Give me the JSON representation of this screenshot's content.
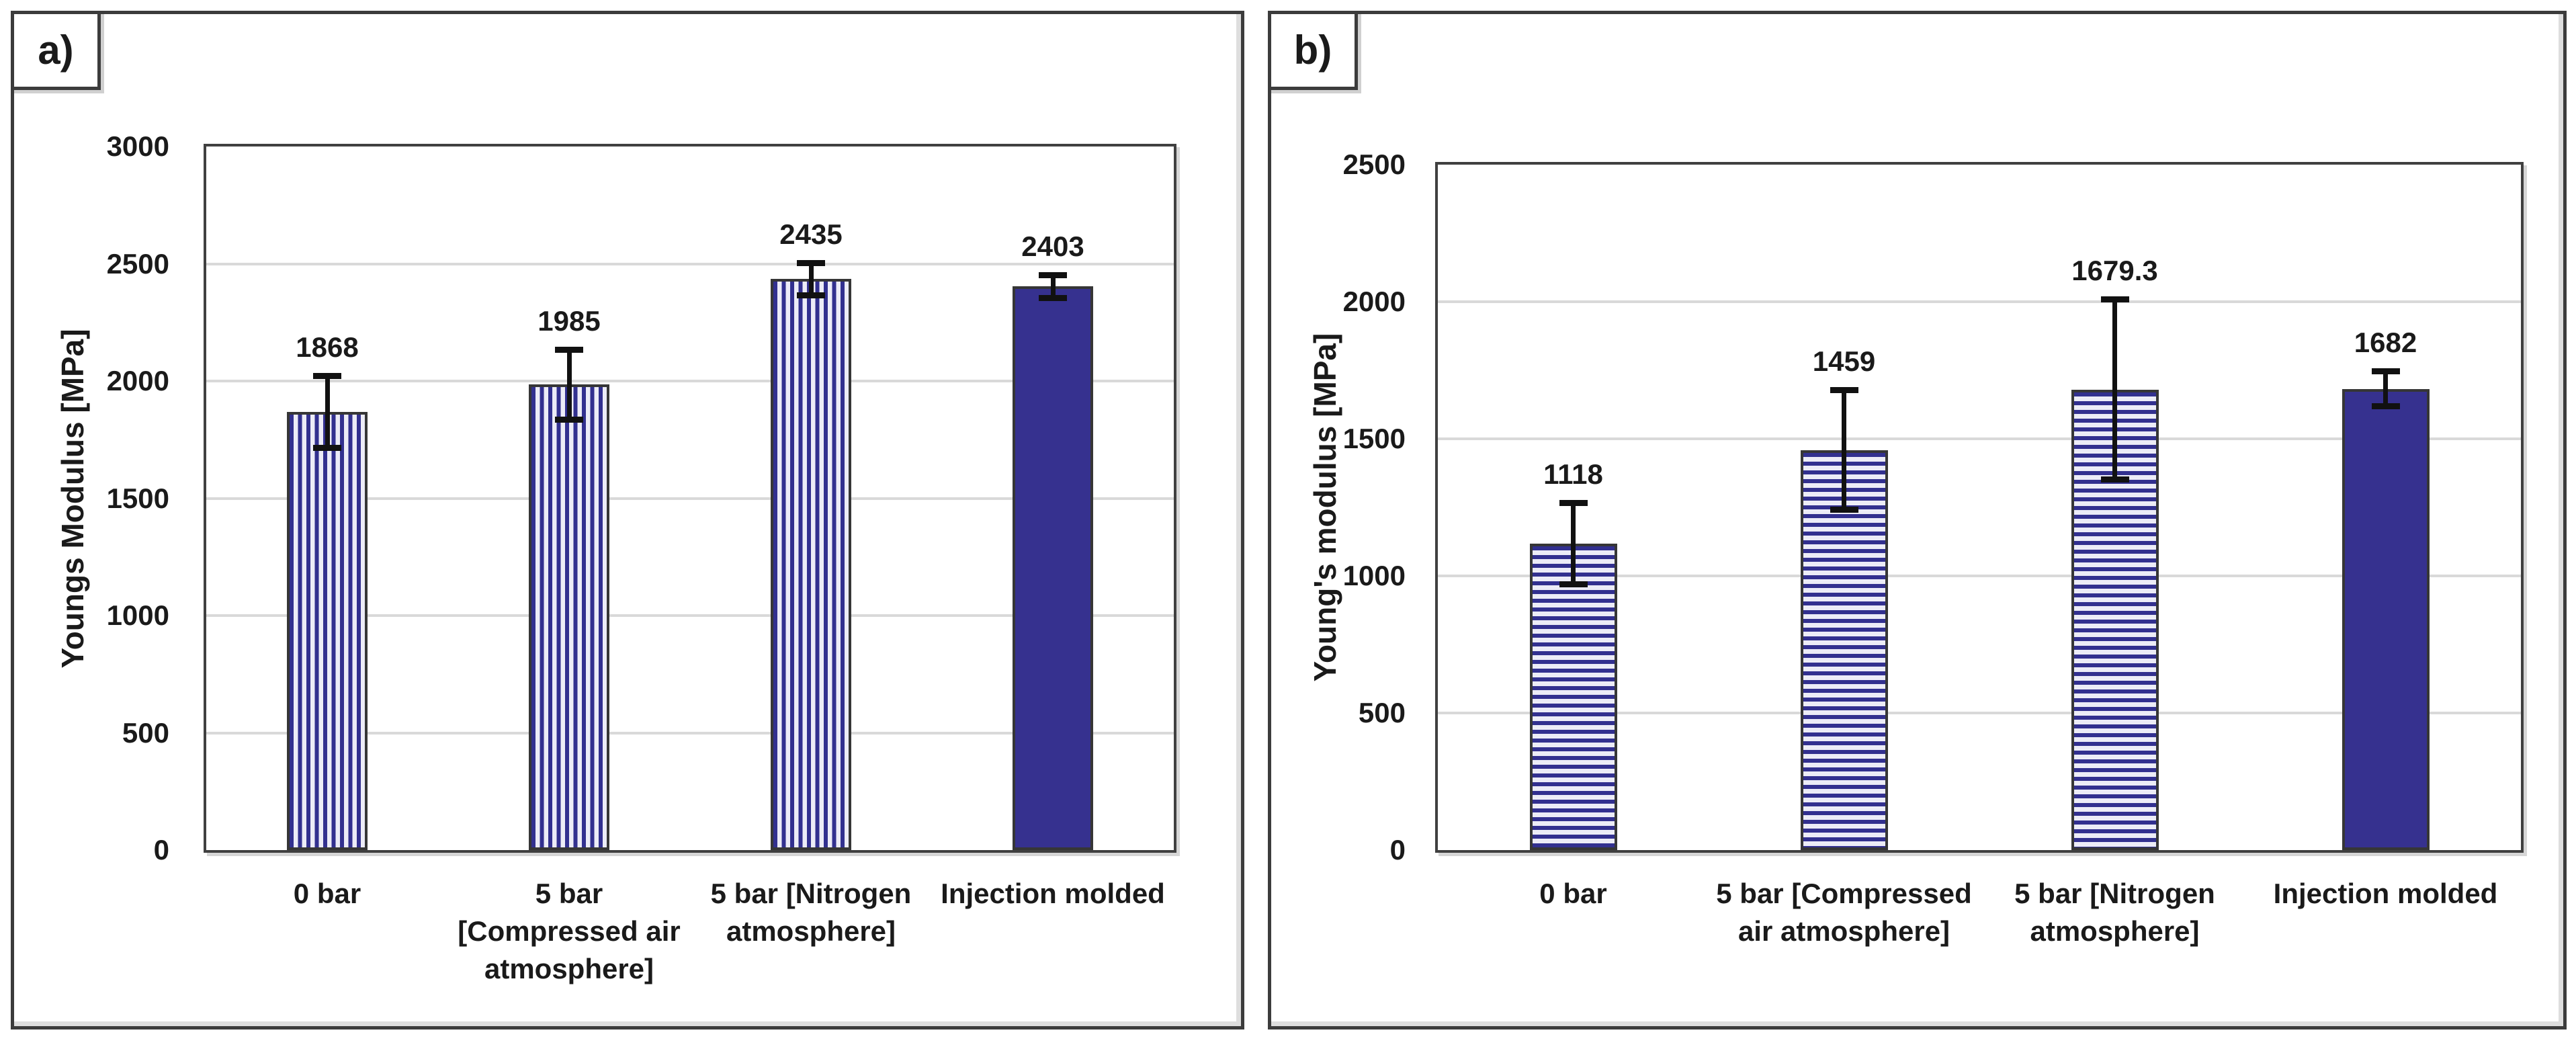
{
  "figure": {
    "background": "#FFFFFF",
    "description_note": ""
  },
  "colors": {
    "stripe_dark": "#32308F",
    "stripe_light": "#ECECF7",
    "solid_fill": "#36318F",
    "bar_border": "#363636",
    "grid": "#D9D9D9",
    "plot_border": "#404040",
    "panel_border": "#3C3C3C",
    "error_bar": "#111111",
    "text": "#1A1A1A"
  },
  "chart_data": [
    {
      "type": "bar",
      "panel_label": "a)",
      "title": "",
      "xlabel": "",
      "ylabel": "Youngs Modulus [MPa]",
      "ylim": [
        0,
        3000
      ],
      "ytick_step": 500,
      "yticks": [
        "0",
        "500",
        "1000",
        "1500",
        "2000",
        "2500",
        "3000"
      ],
      "grid": true,
      "legend": null,
      "categories": [
        "0 bar",
        "5 bar\n[Compressed air\natmosphere]",
        "5 bar [Nitrogen\natmosphere]",
        "Injection molded"
      ],
      "values": [
        1868,
        1985,
        2435,
        2403
      ],
      "value_labels": [
        "1868",
        "1985",
        "2435",
        "2403"
      ],
      "errors": [
        155,
        150,
        70,
        50
      ],
      "bar_patterns": [
        "vertical-stripes",
        "vertical-stripes",
        "vertical-stripes",
        "solid"
      ]
    },
    {
      "type": "bar",
      "panel_label": "b)",
      "title": "",
      "xlabel": "",
      "ylabel": "Young's modulus [MPa]",
      "ylim": [
        0,
        2500
      ],
      "ytick_step": 500,
      "yticks": [
        "0",
        "500",
        "1000",
        "1500",
        "2000",
        "2500"
      ],
      "grid": true,
      "legend": null,
      "categories": [
        "0 bar",
        "5 bar [Compressed\nair atmosphere]",
        "5 bar [Nitrogen\natmosphere]",
        "Injection molded"
      ],
      "values": [
        1118,
        1459,
        1679.3,
        1682
      ],
      "value_labels": [
        "1118",
        "1459",
        "1679.3",
        "1682"
      ],
      "errors": [
        150,
        220,
        330,
        65
      ],
      "bar_patterns": [
        "horizontal-stripes",
        "horizontal-stripes",
        "horizontal-stripes",
        "solid"
      ]
    }
  ]
}
